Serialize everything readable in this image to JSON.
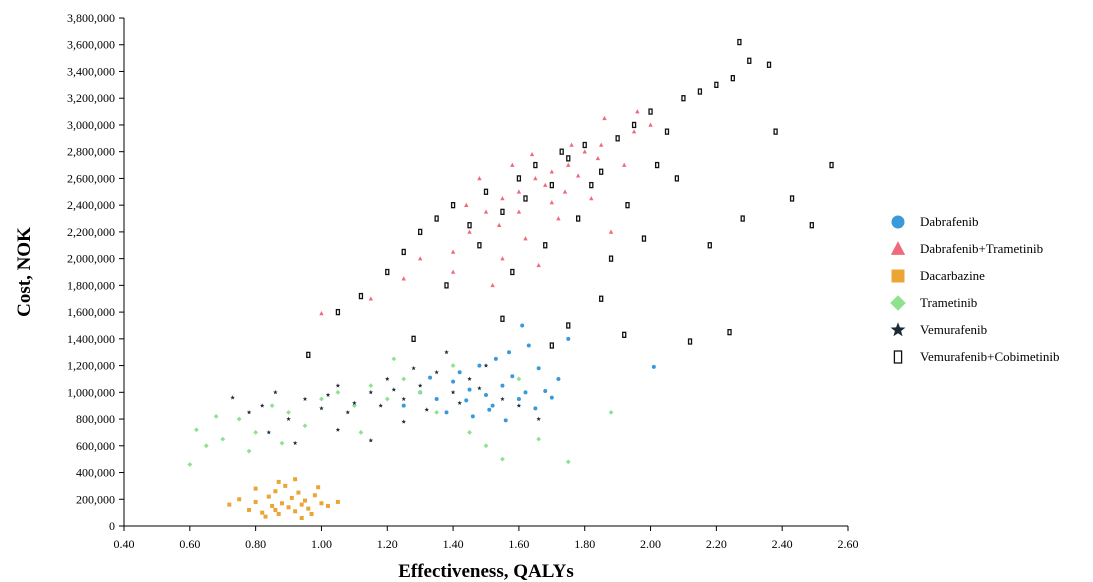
{
  "chart_data": {
    "type": "scatter",
    "title": "",
    "xlabel": "Effectiveness, QALYs",
    "ylabel": "Cost, NOK",
    "xlim": [
      0.4,
      2.6
    ],
    "ylim": [
      0,
      3800000
    ],
    "x_ticks": [
      "0.40",
      "0.60",
      "0.80",
      "1.00",
      "1.20",
      "1.40",
      "1.60",
      "1.80",
      "2.00",
      "2.20",
      "2.40",
      "2.60"
    ],
    "y_ticks": [
      "0",
      "200,000",
      "400,000",
      "600,000",
      "800,000",
      "1,000,000",
      "1,200,000",
      "1,400,000",
      "1,600,000",
      "1,800,000",
      "2,000,000",
      "2,200,000",
      "2,400,000",
      "2,600,000",
      "2,800,000",
      "3,000,000",
      "3,200,000",
      "3,400,000",
      "3,600,000",
      "3,800,000"
    ],
    "grid": false,
    "legend_position": "right",
    "series": [
      {
        "name": "Dabrafenib",
        "color": "#3a9ad9",
        "marker": "circle",
        "points": [
          [
            1.3,
            1000000
          ],
          [
            1.35,
            950000
          ],
          [
            1.4,
            1080000
          ],
          [
            1.45,
            1020000
          ],
          [
            1.5,
            980000
          ],
          [
            1.52,
            900000
          ],
          [
            1.55,
            1050000
          ],
          [
            1.58,
            1120000
          ],
          [
            1.6,
            950000
          ],
          [
            1.62,
            1000000
          ],
          [
            1.65,
            880000
          ],
          [
            1.68,
            1010000
          ],
          [
            1.7,
            960000
          ],
          [
            1.25,
            900000
          ],
          [
            1.42,
            1150000
          ],
          [
            1.48,
            1200000
          ],
          [
            1.53,
            1250000
          ],
          [
            1.57,
            1300000
          ],
          [
            1.63,
            1350000
          ],
          [
            1.72,
            1100000
          ],
          [
            1.38,
            850000
          ],
          [
            1.46,
            820000
          ],
          [
            1.56,
            790000
          ],
          [
            1.66,
            1180000
          ],
          [
            1.75,
            1400000
          ],
          [
            2.01,
            1190000
          ],
          [
            1.61,
            1500000
          ],
          [
            1.33,
            1110000
          ],
          [
            1.51,
            870000
          ],
          [
            1.44,
            940000
          ]
        ]
      },
      {
        "name": "Dabrafenib+Trametinib",
        "color": "#f06a7c",
        "marker": "triangle",
        "points": [
          [
            1.0,
            1590000
          ],
          [
            1.15,
            1700000
          ],
          [
            1.25,
            1850000
          ],
          [
            1.3,
            2000000
          ],
          [
            1.4,
            2050000
          ],
          [
            1.45,
            2200000
          ],
          [
            1.5,
            2350000
          ],
          [
            1.55,
            2450000
          ],
          [
            1.6,
            2500000
          ],
          [
            1.65,
            2600000
          ],
          [
            1.7,
            2650000
          ],
          [
            1.75,
            2700000
          ],
          [
            1.8,
            2800000
          ],
          [
            1.85,
            2850000
          ],
          [
            1.9,
            2900000
          ],
          [
            1.95,
            2950000
          ],
          [
            2.0,
            3000000
          ],
          [
            1.72,
            2300000
          ],
          [
            1.62,
            2150000
          ],
          [
            1.55,
            2000000
          ],
          [
            1.68,
            2550000
          ],
          [
            1.78,
            2620000
          ],
          [
            1.82,
            2450000
          ],
          [
            1.58,
            2700000
          ],
          [
            1.48,
            2600000
          ],
          [
            1.88,
            2200000
          ],
          [
            1.92,
            2700000
          ],
          [
            1.4,
            1900000
          ],
          [
            1.52,
            1800000
          ],
          [
            1.66,
            1950000
          ],
          [
            1.74,
            2500000
          ],
          [
            1.84,
            2750000
          ],
          [
            1.6,
            2350000
          ],
          [
            1.7,
            2420000
          ],
          [
            1.76,
            2850000
          ],
          [
            1.86,
            3050000
          ],
          [
            1.96,
            3100000
          ],
          [
            1.64,
            2780000
          ],
          [
            1.44,
            2400000
          ],
          [
            1.54,
            2250000
          ]
        ]
      },
      {
        "name": "Dacarbazine",
        "color": "#eaa534",
        "marker": "square",
        "points": [
          [
            0.75,
            200000
          ],
          [
            0.78,
            120000
          ],
          [
            0.8,
            180000
          ],
          [
            0.82,
            100000
          ],
          [
            0.84,
            220000
          ],
          [
            0.85,
            150000
          ],
          [
            0.86,
            260000
          ],
          [
            0.87,
            90000
          ],
          [
            0.88,
            170000
          ],
          [
            0.89,
            300000
          ],
          [
            0.9,
            140000
          ],
          [
            0.91,
            210000
          ],
          [
            0.92,
            110000
          ],
          [
            0.93,
            250000
          ],
          [
            0.94,
            160000
          ],
          [
            0.95,
            190000
          ],
          [
            0.96,
            130000
          ],
          [
            0.98,
            230000
          ],
          [
            1.0,
            170000
          ],
          [
            1.02,
            150000
          ],
          [
            1.05,
            180000
          ],
          [
            0.83,
            70000
          ],
          [
            0.87,
            330000
          ],
          [
            0.92,
            350000
          ],
          [
            0.97,
            90000
          ],
          [
            0.72,
            160000
          ],
          [
            0.8,
            280000
          ],
          [
            0.94,
            60000
          ],
          [
            0.99,
            290000
          ],
          [
            0.86,
            120000
          ]
        ]
      },
      {
        "name": "Trametinib",
        "color": "#8ee28e",
        "marker": "diamond",
        "points": [
          [
            0.6,
            460000
          ],
          [
            0.62,
            720000
          ],
          [
            0.65,
            600000
          ],
          [
            0.7,
            650000
          ],
          [
            0.75,
            800000
          ],
          [
            0.8,
            700000
          ],
          [
            0.85,
            900000
          ],
          [
            0.9,
            850000
          ],
          [
            0.95,
            750000
          ],
          [
            1.0,
            950000
          ],
          [
            1.05,
            1000000
          ],
          [
            1.1,
            900000
          ],
          [
            1.15,
            1050000
          ],
          [
            1.2,
            950000
          ],
          [
            1.25,
            1100000
          ],
          [
            1.3,
            1000000
          ],
          [
            1.35,
            850000
          ],
          [
            1.4,
            1200000
          ],
          [
            1.45,
            700000
          ],
          [
            1.5,
            600000
          ],
          [
            1.55,
            500000
          ],
          [
            1.6,
            1100000
          ],
          [
            1.66,
            650000
          ],
          [
            1.75,
            480000
          ],
          [
            1.88,
            850000
          ],
          [
            0.68,
            820000
          ],
          [
            0.78,
            560000
          ],
          [
            0.88,
            620000
          ],
          [
            1.12,
            700000
          ],
          [
            1.22,
            1250000
          ]
        ]
      },
      {
        "name": "Vemurafenib",
        "color": "#1c2b33",
        "marker": "star",
        "points": [
          [
            0.73,
            960000
          ],
          [
            0.78,
            850000
          ],
          [
            0.82,
            900000
          ],
          [
            0.86,
            1000000
          ],
          [
            0.9,
            800000
          ],
          [
            0.95,
            950000
          ],
          [
            1.0,
            880000
          ],
          [
            1.05,
            1050000
          ],
          [
            1.1,
            920000
          ],
          [
            1.15,
            1000000
          ],
          [
            1.2,
            1100000
          ],
          [
            1.25,
            950000
          ],
          [
            1.3,
            1050000
          ],
          [
            1.35,
            1150000
          ],
          [
            1.4,
            1000000
          ],
          [
            1.45,
            1100000
          ],
          [
            1.5,
            1200000
          ],
          [
            1.55,
            950000
          ],
          [
            1.6,
            900000
          ],
          [
            1.66,
            800000
          ],
          [
            0.96,
            1280000
          ],
          [
            1.05,
            720000
          ],
          [
            1.15,
            640000
          ],
          [
            1.25,
            780000
          ],
          [
            1.38,
            1300000
          ],
          [
            0.84,
            700000
          ],
          [
            0.92,
            620000
          ],
          [
            1.08,
            850000
          ],
          [
            1.18,
            900000
          ],
          [
            1.32,
            870000
          ],
          [
            1.42,
            920000
          ],
          [
            1.22,
            1020000
          ],
          [
            1.02,
            980000
          ],
          [
            1.28,
            1180000
          ],
          [
            1.48,
            1030000
          ]
        ]
      },
      {
        "name": "Vemurafenib+Cobimetinib",
        "color": "#111111",
        "marker": "rect",
        "points": [
          [
            1.05,
            1600000
          ],
          [
            1.12,
            1720000
          ],
          [
            1.2,
            1900000
          ],
          [
            1.25,
            2050000
          ],
          [
            1.3,
            2200000
          ],
          [
            1.35,
            2300000
          ],
          [
            1.4,
            2400000
          ],
          [
            1.45,
            2250000
          ],
          [
            1.5,
            2500000
          ],
          [
            1.55,
            2350000
          ],
          [
            1.6,
            2600000
          ],
          [
            1.65,
            2700000
          ],
          [
            1.7,
            2550000
          ],
          [
            1.75,
            2750000
          ],
          [
            1.8,
            2850000
          ],
          [
            1.85,
            2650000
          ],
          [
            1.9,
            2900000
          ],
          [
            1.95,
            3000000
          ],
          [
            2.0,
            3100000
          ],
          [
            2.05,
            2950000
          ],
          [
            2.1,
            3200000
          ],
          [
            2.15,
            3250000
          ],
          [
            2.2,
            3300000
          ],
          [
            2.25,
            3350000
          ],
          [
            2.27,
            3620000
          ],
          [
            2.3,
            3480000
          ],
          [
            2.36,
            3450000
          ],
          [
            2.38,
            2950000
          ],
          [
            2.43,
            2450000
          ],
          [
            2.49,
            2250000
          ],
          [
            2.55,
            2700000
          ],
          [
            2.24,
            1450000
          ],
          [
            2.12,
            1380000
          ],
          [
            1.92,
            1430000
          ],
          [
            1.7,
            1350000
          ],
          [
            1.55,
            1550000
          ],
          [
            1.98,
            2150000
          ],
          [
            2.18,
            2100000
          ],
          [
            2.28,
            2300000
          ],
          [
            1.88,
            2000000
          ],
          [
            1.78,
            2300000
          ],
          [
            1.68,
            2100000
          ],
          [
            1.58,
            1900000
          ],
          [
            1.48,
            2100000
          ],
          [
            1.38,
            1800000
          ],
          [
            1.62,
            2450000
          ],
          [
            1.82,
            2550000
          ],
          [
            2.02,
            2700000
          ],
          [
            1.93,
            2400000
          ],
          [
            1.73,
            2800000
          ],
          [
            1.28,
            1400000
          ],
          [
            0.96,
            1280000
          ],
          [
            2.08,
            2600000
          ],
          [
            1.85,
            1700000
          ],
          [
            1.75,
            1500000
          ]
        ]
      }
    ]
  }
}
